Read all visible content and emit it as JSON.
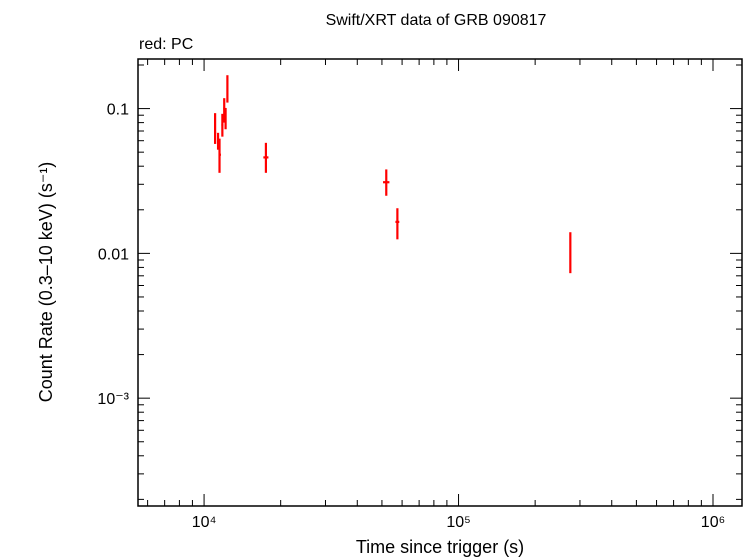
{
  "chart_data": {
    "type": "scatter",
    "title": "Swift/XRT data of GRB 090817",
    "subtitle": "red: PC",
    "xlabel": "Time since trigger (s)",
    "ylabel": "Count Rate (0.3–10 keV) (s⁻¹)",
    "xscale": "log",
    "yscale": "log",
    "xlim": [
      5500,
      1300000
    ],
    "ylim": [
      0.00018,
      0.22
    ],
    "grid": false,
    "x_ticks": [
      {
        "value": 10000,
        "label": "10⁴"
      },
      {
        "value": 100000,
        "label": "10⁵"
      },
      {
        "value": 1000000,
        "label": "10⁶"
      }
    ],
    "y_ticks": [
      {
        "value": 0.1,
        "label": "0.1"
      },
      {
        "value": 0.01,
        "label": "0.01"
      },
      {
        "value": 0.001,
        "label": "10⁻³"
      }
    ],
    "series": [
      {
        "color": "#ff0000",
        "points": [
          {
            "x": 11050,
            "y": 0.068,
            "ylo": 0.057,
            "yhi": 0.093,
            "xlo": 10950,
            "xhi": 11150
          },
          {
            "x": 11350,
            "y": 0.06,
            "ylo": 0.052,
            "yhi": 0.068,
            "xlo": 11250,
            "xhi": 11450
          },
          {
            "x": 11500,
            "y": 0.048,
            "ylo": 0.036,
            "yhi": 0.062,
            "xlo": 11400,
            "xhi": 11650
          },
          {
            "x": 11800,
            "y": 0.077,
            "ylo": 0.064,
            "yhi": 0.092,
            "xlo": 11700,
            "xhi": 11900
          },
          {
            "x": 12000,
            "y": 0.1,
            "ylo": 0.08,
            "yhi": 0.118,
            "xlo": 11900,
            "xhi": 12100
          },
          {
            "x": 12150,
            "y": 0.085,
            "ylo": 0.072,
            "yhi": 0.101,
            "xlo": 12080,
            "xhi": 12220
          },
          {
            "x": 12350,
            "y": 0.14,
            "ylo": 0.11,
            "yhi": 0.17,
            "xlo": 12250,
            "xhi": 12450
          },
          {
            "x": 17500,
            "y": 0.046,
            "ylo": 0.036,
            "yhi": 0.058,
            "xlo": 17100,
            "xhi": 17900
          },
          {
            "x": 52000,
            "y": 0.031,
            "ylo": 0.025,
            "yhi": 0.038,
            "xlo": 50500,
            "xhi": 53500
          },
          {
            "x": 57500,
            "y": 0.0165,
            "ylo": 0.0125,
            "yhi": 0.0205,
            "xlo": 56500,
            "xhi": 58500
          },
          {
            "x": 275000,
            "y": 0.0105,
            "ylo": 0.0073,
            "yhi": 0.014,
            "xlo": 273500,
            "xhi": 276500
          }
        ]
      }
    ]
  }
}
